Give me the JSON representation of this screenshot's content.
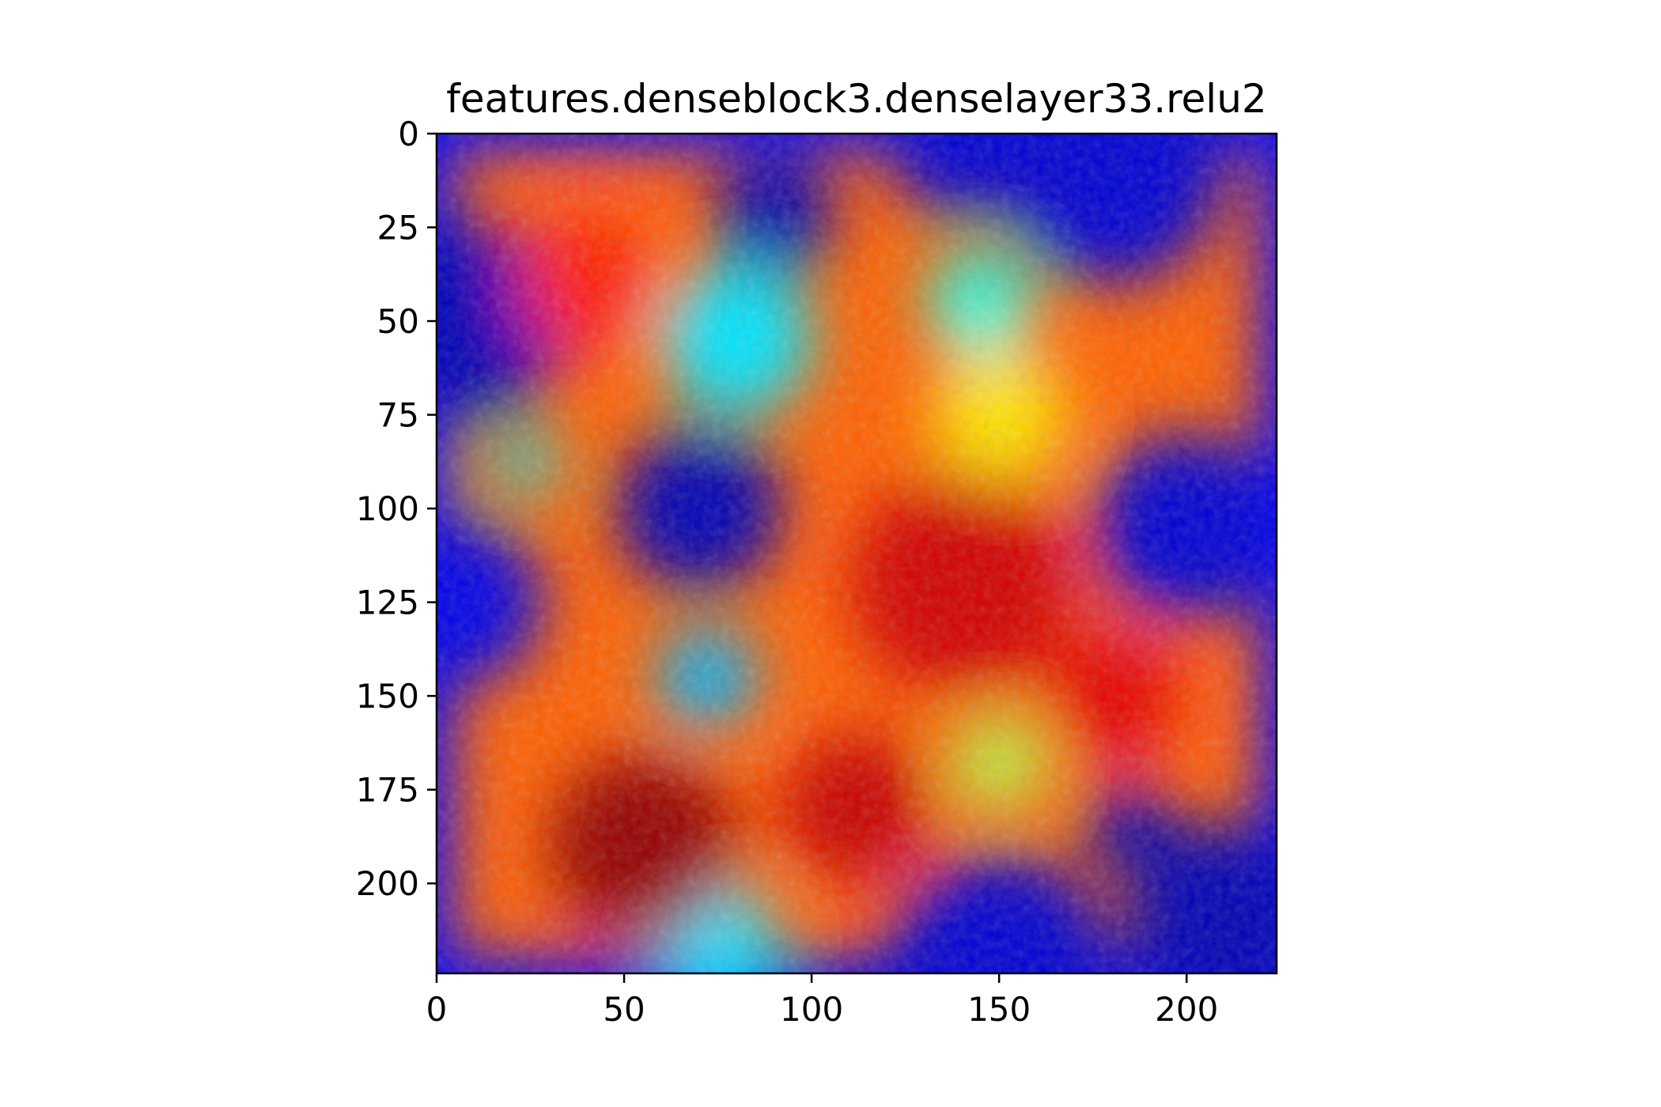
{
  "chart_data": {
    "type": "heatmap",
    "title": "features.denseblock3.denselayer33.relu2",
    "xlabel": "",
    "ylabel": "",
    "xlim": [
      0,
      224
    ],
    "ylim": [
      224,
      0
    ],
    "x_ticks": [
      0,
      50,
      100,
      150,
      200
    ],
    "y_ticks": [
      0,
      25,
      50,
      75,
      100,
      125,
      150,
      175,
      200
    ],
    "grid": false,
    "legend": "none",
    "colormap": "jet",
    "overlay": "activation heatmap over photo",
    "colors": {
      "low": "#00008f",
      "mid_low": "#00ffff",
      "mid": "#ffff00",
      "high": "#ff0000",
      "max": "#800000"
    },
    "hotspots": [
      {
        "x": 70,
        "y": 100,
        "r": 22,
        "level": 0.05
      },
      {
        "x": 90,
        "y": 22,
        "r": 16,
        "level": 0.05
      },
      {
        "x": 10,
        "y": 50,
        "r": 26,
        "level": 0.05
      },
      {
        "x": 200,
        "y": 105,
        "r": 25,
        "level": 0.08
      },
      {
        "x": 185,
        "y": 185,
        "r": 12,
        "level": 0.05
      },
      {
        "x": 140,
        "y": 5,
        "r": 18,
        "level": 0.08
      },
      {
        "x": 180,
        "y": 10,
        "r": 30,
        "level": 0.08
      },
      {
        "x": 6,
        "y": 125,
        "r": 22,
        "level": 0.1
      },
      {
        "x": 150,
        "y": 222,
        "r": 30,
        "level": 0.08
      },
      {
        "x": 210,
        "y": 210,
        "r": 26,
        "level": 0.05
      },
      {
        "x": 75,
        "y": 215,
        "r": 15,
        "level": 0.35
      },
      {
        "x": 72,
        "y": 145,
        "r": 13,
        "level": 0.3
      },
      {
        "x": 80,
        "y": 55,
        "r": 20,
        "level": 0.35
      },
      {
        "x": 145,
        "y": 45,
        "r": 14,
        "level": 0.4
      },
      {
        "x": 150,
        "y": 168,
        "r": 12,
        "level": 0.55
      },
      {
        "x": 150,
        "y": 75,
        "r": 18,
        "level": 0.65
      },
      {
        "x": 24,
        "y": 88,
        "r": 8,
        "level": 0.35
      },
      {
        "x": 55,
        "y": 190,
        "r": 25,
        "level": 0.98
      },
      {
        "x": 140,
        "y": 120,
        "r": 30,
        "level": 0.92
      },
      {
        "x": 40,
        "y": 40,
        "r": 18,
        "level": 0.85
      },
      {
        "x": 180,
        "y": 150,
        "r": 18,
        "level": 0.9
      },
      {
        "x": 112,
        "y": 180,
        "r": 20,
        "level": 0.93
      }
    ],
    "base_level": 0.78
  }
}
